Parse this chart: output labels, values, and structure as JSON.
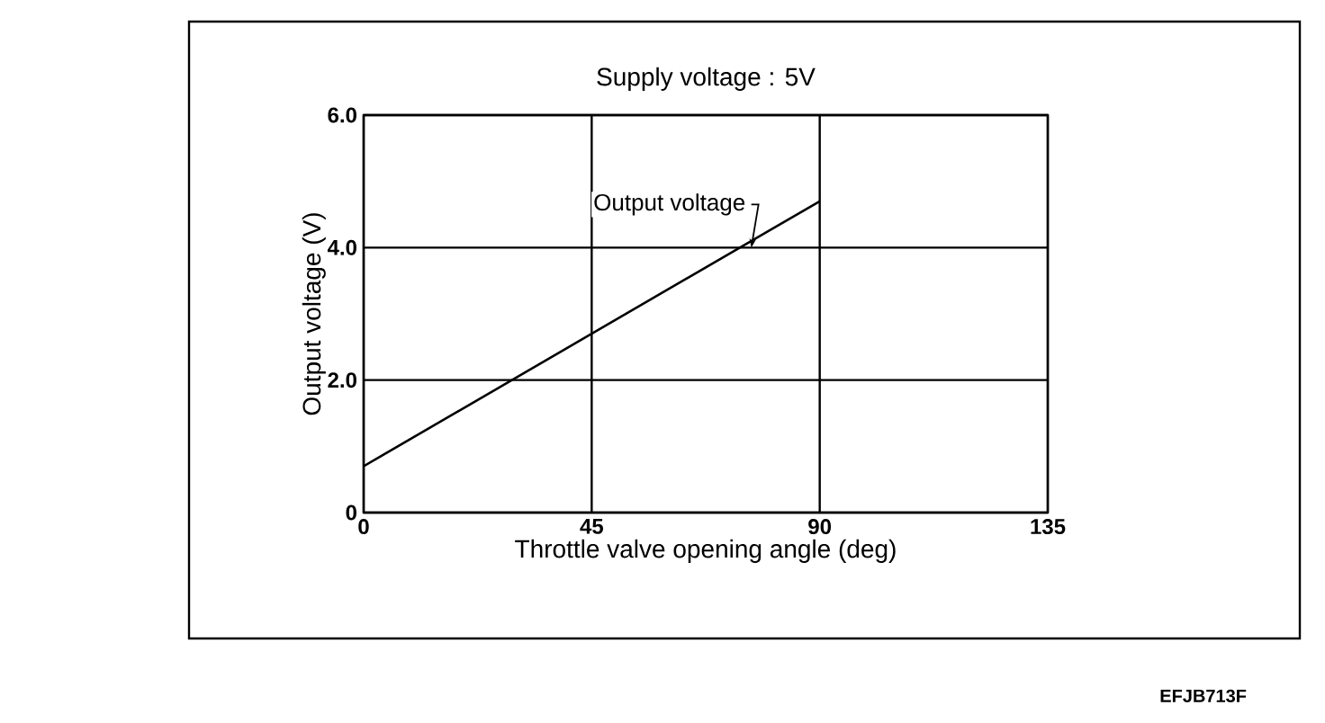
{
  "chart_data": {
    "type": "line",
    "title": "Supply voltage : 5V",
    "xlabel": "Throttle valve opening angle (deg)",
    "ylabel": "Output voltage (V)",
    "x": [
      0,
      90
    ],
    "series": [
      {
        "color": "#000000",
        "values": [
          0.7,
          4.7
        ]
      }
    ],
    "xlim": [
      0,
      135
    ],
    "xticks": [
      0,
      45,
      90,
      135
    ],
    "ylim": [
      0,
      6
    ],
    "yticks": [
      0,
      {
        "value": 2,
        "label": "2.0"
      },
      {
        "value": 4,
        "label": "4.0"
      },
      {
        "value": 6,
        "label": "6.0"
      }
    ],
    "grid": true,
    "marker": "none",
    "line_style": "solid",
    "annotations": [
      {
        "text": "Output voltage",
        "x": 76.5,
        "y": 4.0
      },
      "EFJB713F"
    ]
  }
}
